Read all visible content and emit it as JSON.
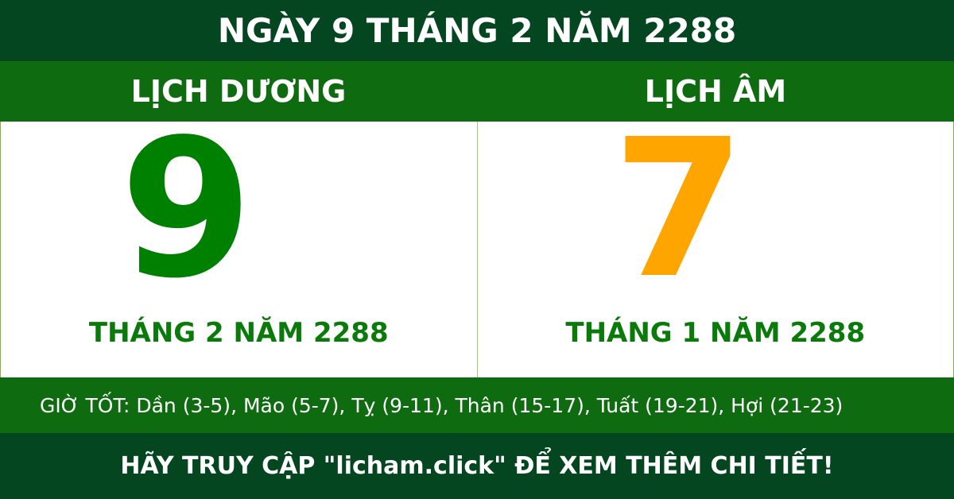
{
  "title": "NGÀY 9 THÁNG 2 NĂM 2288",
  "solar": {
    "label": "LỊCH DƯƠNG",
    "day": "9",
    "month_year": "THÁNG 2 NĂM 2288"
  },
  "lunar": {
    "label": "LỊCH ÂM",
    "day": "7",
    "month_year": "THÁNG 1 NĂM 2288"
  },
  "good_hours": "GIỜ TỐT: Dần (3-5), Mão (5-7), Tỵ (9-11), Thân (15-17), Tuất (19-21), Hợi (21-23)",
  "footer": "HÃY TRUY CẬP \"licham.click\" ĐỂ XEM THÊM CHI TIẾT!",
  "colors": {
    "dark_green": "#034620",
    "green": "#0f6b10",
    "solar_day": "#008000",
    "lunar_day": "#ffa500"
  }
}
